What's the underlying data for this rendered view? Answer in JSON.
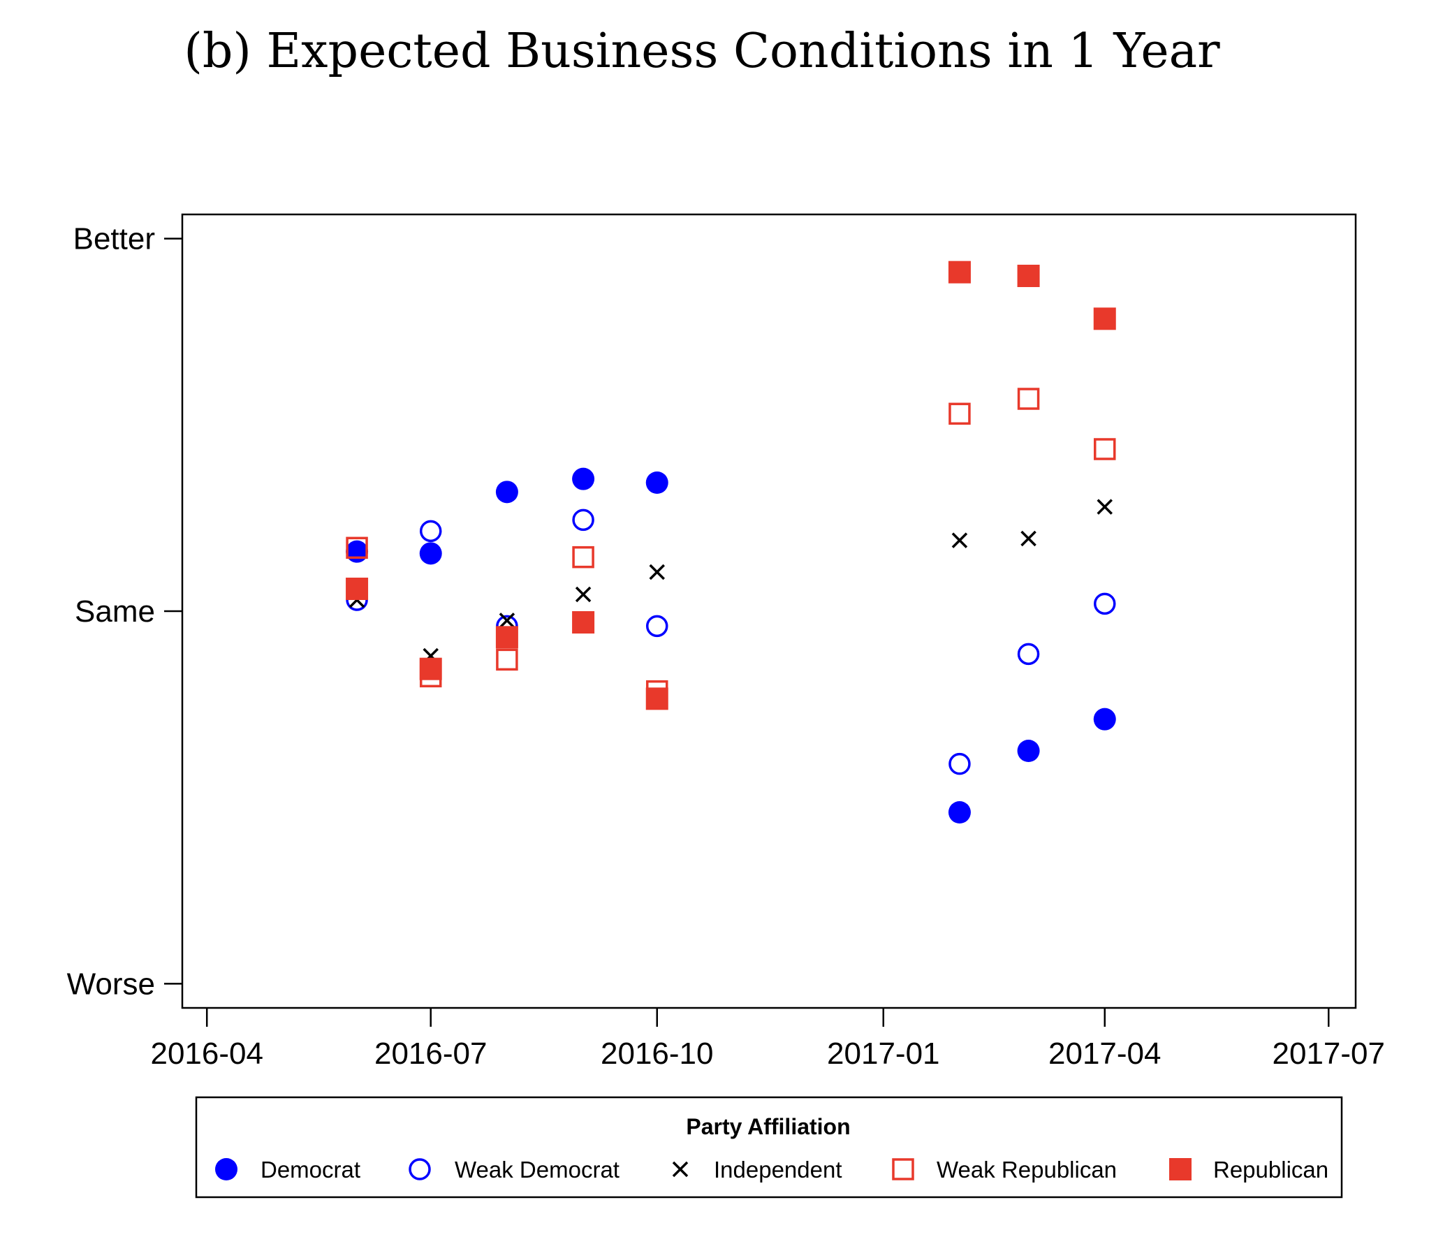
{
  "chart_data": {
    "type": "scatter",
    "title": "(b) Expected Business Conditions in 1 Year",
    "xlabel": "",
    "ylabel": "",
    "x_ticks": [
      "2016-04",
      "2016-07",
      "2016-10",
      "2017-01",
      "2017-04",
      "2017-07"
    ],
    "xlim": [
      "2016-03-22",
      "2017-07-12"
    ],
    "y_ticks": [
      {
        "label": "Better",
        "value": 1
      },
      {
        "label": "Same",
        "value": 0
      },
      {
        "label": "Worse",
        "value": -1
      }
    ],
    "ylim": [
      -1.065,
      1.065
    ],
    "grid": false,
    "legend": {
      "title": "Party Affiliation",
      "position": "bottom"
    },
    "x": [
      "2016-06-01",
      "2016-07-01",
      "2016-08-01",
      "2016-09-01",
      "2016-10-01",
      "2017-02-01",
      "2017-03-01",
      "2017-04-01"
    ],
    "series": [
      {
        "name": "Democrat",
        "marker": "filled-circle",
        "color": "#0000ff",
        "values": [
          0.16,
          0.155,
          0.32,
          0.355,
          0.345,
          -0.54,
          -0.375,
          -0.29
        ]
      },
      {
        "name": "Weak Democrat",
        "marker": "hollow-circle",
        "color": "#0000ff",
        "values": [
          0.03,
          0.215,
          -0.04,
          0.245,
          -0.04,
          -0.41,
          -0.115,
          0.02
        ]
      },
      {
        "name": "Independent",
        "marker": "x",
        "color": "#000000",
        "values": [
          0.03,
          -0.12,
          -0.025,
          0.045,
          0.105,
          0.19,
          0.195,
          0.28
        ]
      },
      {
        "name": "Weak Republican",
        "marker": "hollow-square",
        "color": "#e8392b",
        "values": [
          0.17,
          -0.175,
          -0.13,
          0.145,
          -0.215,
          0.53,
          0.57,
          0.435
        ]
      },
      {
        "name": "Republican",
        "marker": "filled-square",
        "color": "#e8392b",
        "values": [
          0.06,
          -0.155,
          -0.07,
          -0.03,
          -0.235,
          0.91,
          0.9,
          0.785
        ]
      }
    ]
  }
}
